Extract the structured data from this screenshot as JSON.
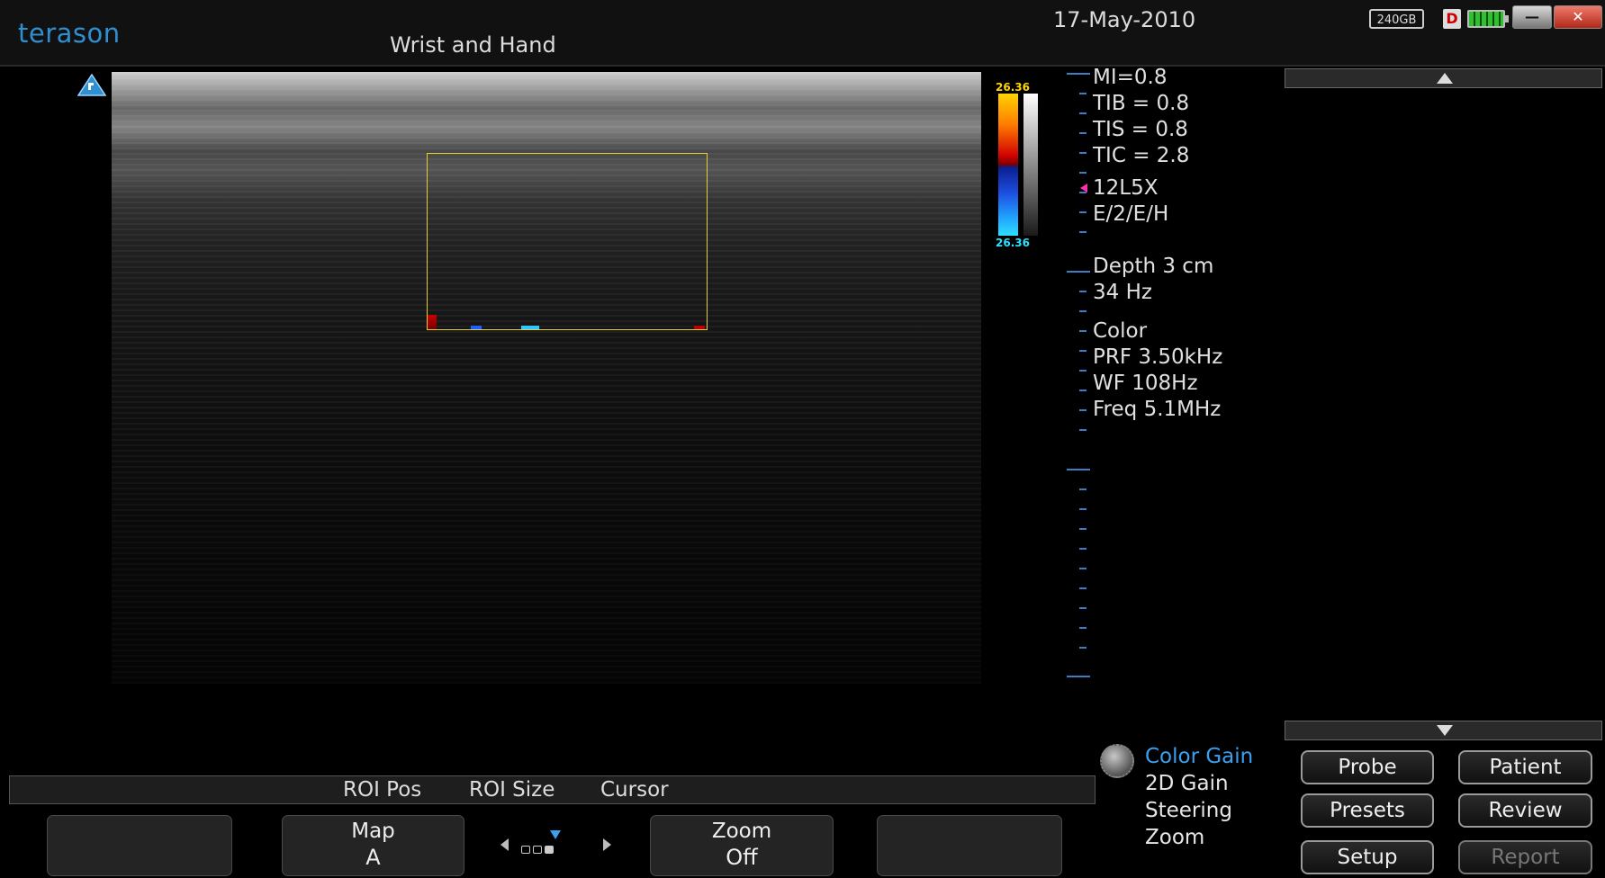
{
  "header": {
    "logo": "terason",
    "study": "Wrist and Hand",
    "date": "17-May-2010",
    "disk_label": "240GB",
    "d_icon_label": "D",
    "window_min": "—",
    "window_close": "✕"
  },
  "color_scale": {
    "top": "26.36",
    "bottom": "26.36"
  },
  "params": [
    "MI=0.8",
    "TIB = 0.8",
    "TIS = 0.8",
    "TIC = 2.8",
    "12L5X",
    "E/2/E/H",
    "Depth 3 cm",
    "34 Hz",
    "Color",
    "PRF 3.50kHz",
    "WF 108Hz",
    "Freq 5.1MHz"
  ],
  "knob_menu": [
    "Color Gain",
    "2D Gain",
    "Steering",
    "Zoom"
  ],
  "subbar": [
    "ROI Pos",
    "ROI Size",
    "Cursor"
  ],
  "softkeys": {
    "map": {
      "title": "Map",
      "value": "A"
    },
    "zoom": {
      "title": "Zoom",
      "value": "Off"
    }
  },
  "right_buttons": {
    "probe": "Probe",
    "patient": "Patient",
    "presets": "Presets",
    "review": "Review",
    "setup": "Setup",
    "report": "Report"
  },
  "colors": {
    "accent": "#3aa0f0",
    "logo": "#2f8fd0",
    "roi": "#e4d02a",
    "scale_top": "#ffd400",
    "scale_bottom": "#2ce0ff"
  },
  "icons": {
    "probe_orientation": "probe-orientation-icon",
    "knob": "knob-icon",
    "battery": "battery-icon"
  }
}
